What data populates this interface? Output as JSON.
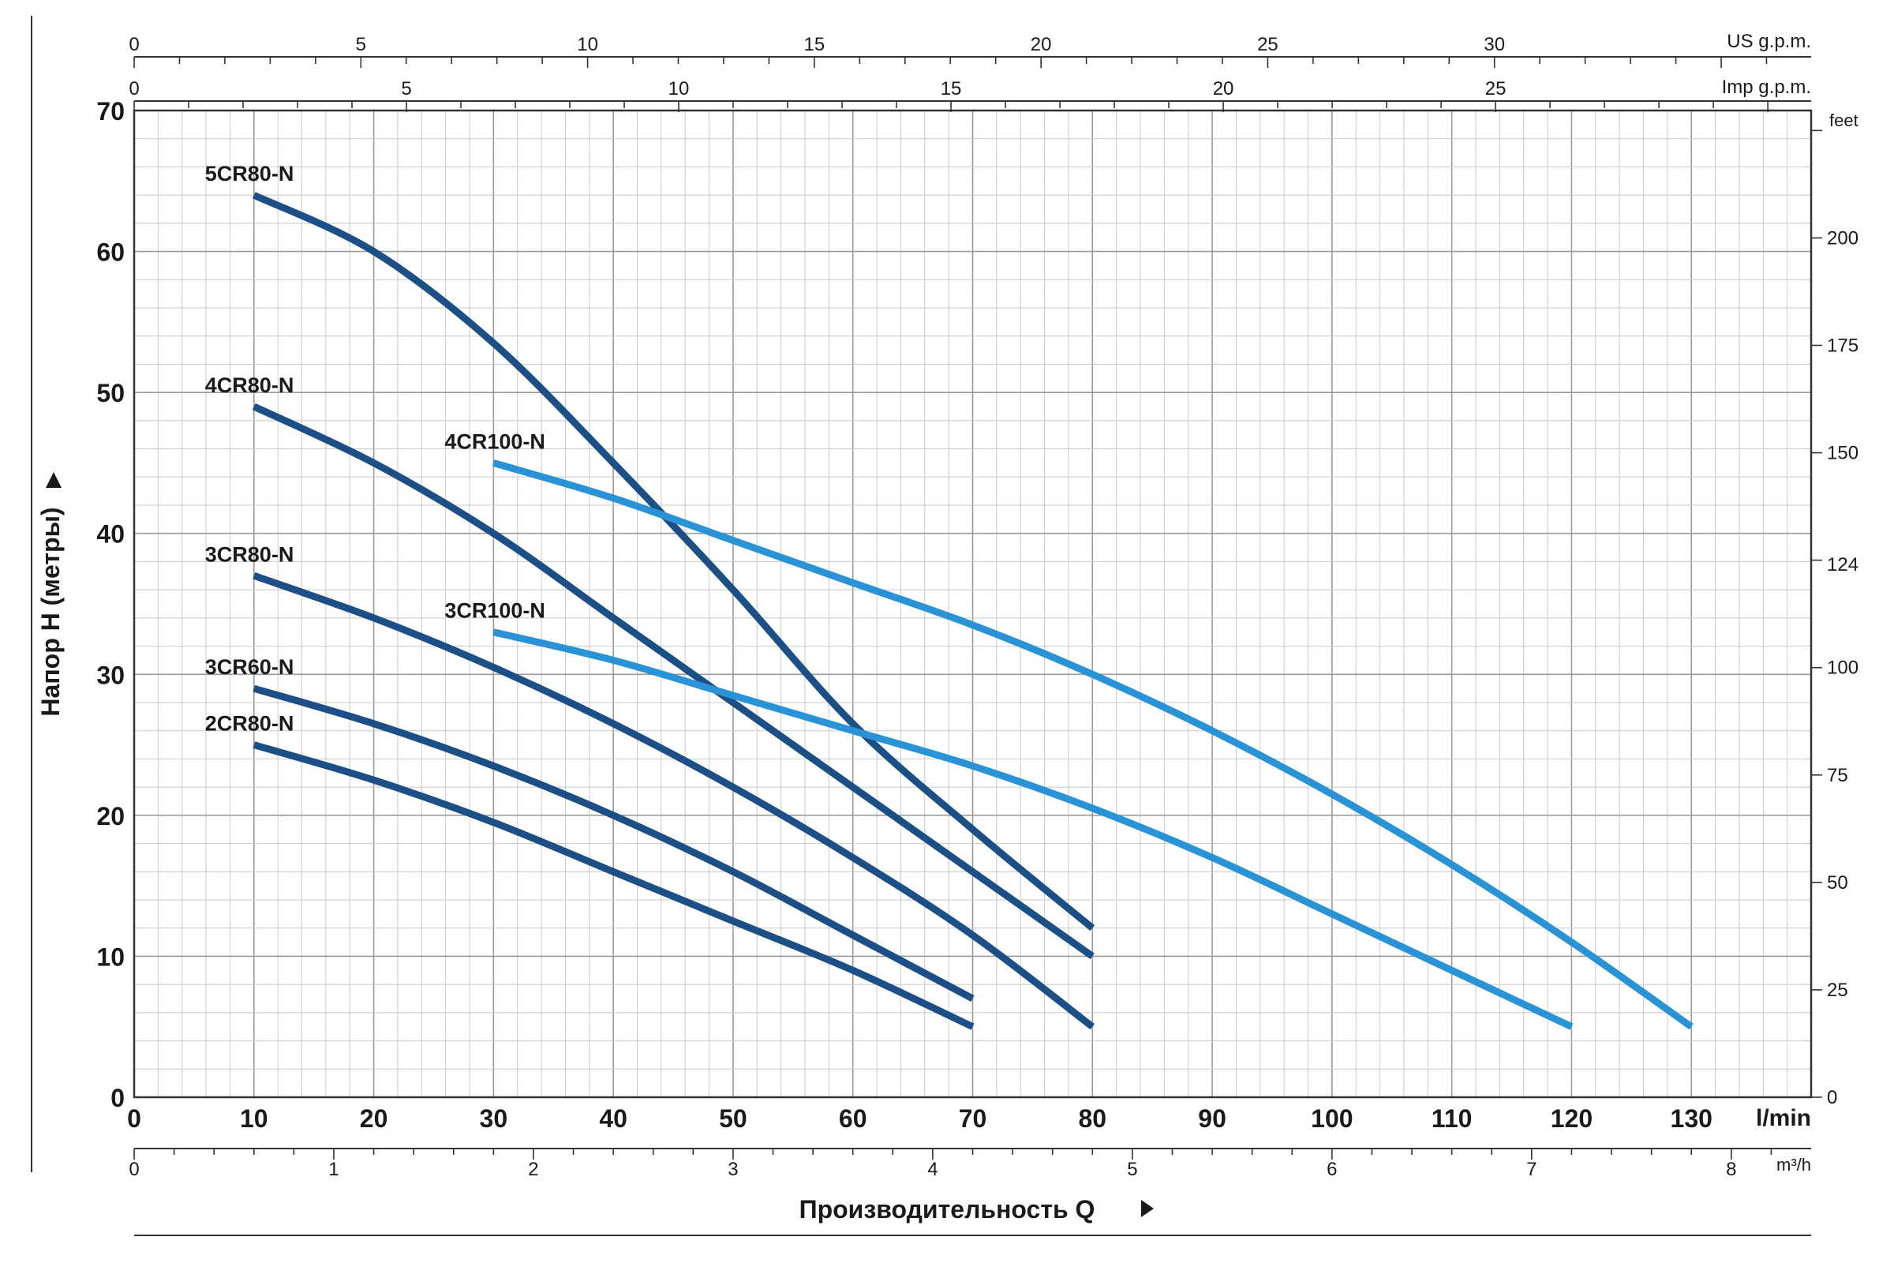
{
  "chart_data": {
    "type": "line",
    "xlabel": "Производительность Q",
    "ylabel": "Напор H (метры)",
    "x_unit": "l/min",
    "xlim": [
      0,
      140
    ],
    "ylim": [
      0,
      70
    ],
    "x_ticks": [
      0,
      10,
      20,
      30,
      40,
      50,
      60,
      70,
      80,
      90,
      100,
      110,
      120,
      130
    ],
    "y_ticks": [
      0,
      10,
      20,
      30,
      40,
      50,
      60,
      70
    ],
    "grid": true,
    "secondary_axes": {
      "us_gpm": {
        "label": "US g.p.m.",
        "ticks": [
          0,
          5,
          10,
          15,
          20,
          25,
          30
        ]
      },
      "imp_gpm": {
        "label": "Imp g.p.m.",
        "ticks": [
          0,
          5,
          10,
          15,
          20,
          25
        ]
      },
      "m3h": {
        "label": "m³/h",
        "ticks": [
          0,
          1,
          2,
          3,
          4,
          5,
          6,
          7,
          8
        ]
      },
      "feet": {
        "label": "feet",
        "ticks": [
          0,
          25,
          50,
          75,
          100,
          124,
          150,
          175,
          200
        ]
      }
    },
    "series": [
      {
        "name": "5CR80-N",
        "color": "#1c4f86",
        "x": [
          10,
          20,
          30,
          40,
          50,
          60,
          70,
          80
        ],
        "y": [
          64,
          60,
          53.5,
          45,
          36,
          26.5,
          19,
          12
        ]
      },
      {
        "name": "4CR80-N",
        "color": "#1c4f86",
        "x": [
          10,
          20,
          30,
          40,
          50,
          60,
          70,
          80
        ],
        "y": [
          49,
          45,
          40,
          34,
          28,
          22,
          16,
          10
        ]
      },
      {
        "name": "3CR80-N",
        "color": "#1c4f86",
        "x": [
          10,
          20,
          30,
          40,
          50,
          60,
          70,
          80
        ],
        "y": [
          37,
          34,
          30.5,
          26.5,
          22,
          17,
          11.5,
          5
        ]
      },
      {
        "name": "3CR60-N",
        "color": "#1c4f86",
        "x": [
          10,
          20,
          30,
          40,
          50,
          60,
          70
        ],
        "y": [
          29,
          26.5,
          23.5,
          20,
          16,
          11.5,
          7
        ]
      },
      {
        "name": "2CR80-N",
        "color": "#1c4f86",
        "x": [
          10,
          20,
          30,
          40,
          50,
          60,
          70
        ],
        "y": [
          25,
          22.5,
          19.5,
          16,
          12.5,
          9,
          5
        ]
      },
      {
        "name": "4CR100-N",
        "color": "#2a93d5",
        "x": [
          30,
          40,
          50,
          60,
          70,
          80,
          90,
          100,
          110,
          120,
          130
        ],
        "y": [
          45,
          42.5,
          39.5,
          36.5,
          33.5,
          30,
          26,
          21.5,
          16.5,
          11,
          5
        ]
      },
      {
        "name": "3CR100-N",
        "color": "#2a93d5",
        "x": [
          30,
          40,
          50,
          60,
          70,
          80,
          90,
          100,
          110,
          120
        ],
        "y": [
          33,
          31,
          28.5,
          26,
          23.5,
          20.5,
          17,
          13,
          9,
          5
        ]
      }
    ]
  }
}
